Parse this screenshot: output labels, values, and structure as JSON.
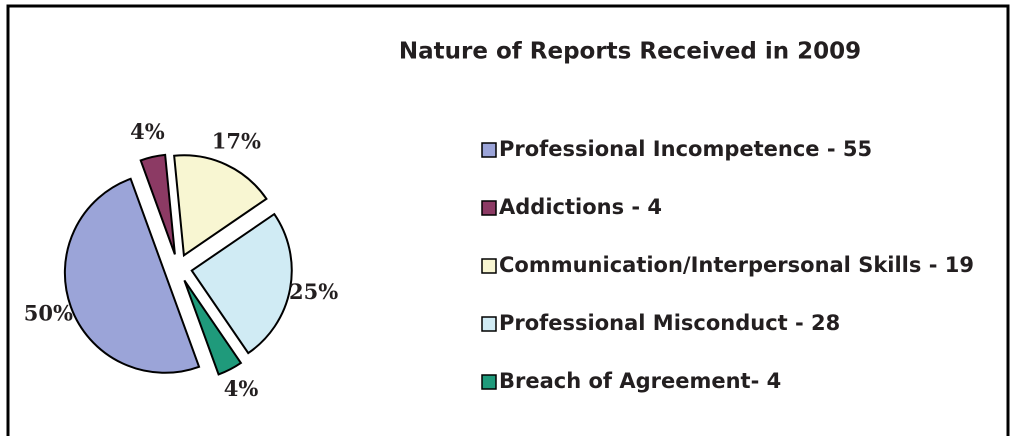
{
  "chart_data": {
    "type": "pie",
    "title": "Nature of Reports Received in 2009",
    "categories": [
      "Professional Incompetence - 55",
      "Addictions - 4",
      "Communication/Interpersonal Skills - 19",
      "Professional Misconduct - 28",
      "Breach of Agreement- 4"
    ],
    "values": [
      50,
      4,
      17,
      25,
      4
    ],
    "value_labels": [
      "50%",
      "4%",
      "17%",
      "25%",
      "4%"
    ],
    "colors": [
      "#9ba4d8",
      "#8c3a64",
      "#f8f6d2",
      "#d0ebf4",
      "#1f9a7b"
    ],
    "legend": "right"
  }
}
